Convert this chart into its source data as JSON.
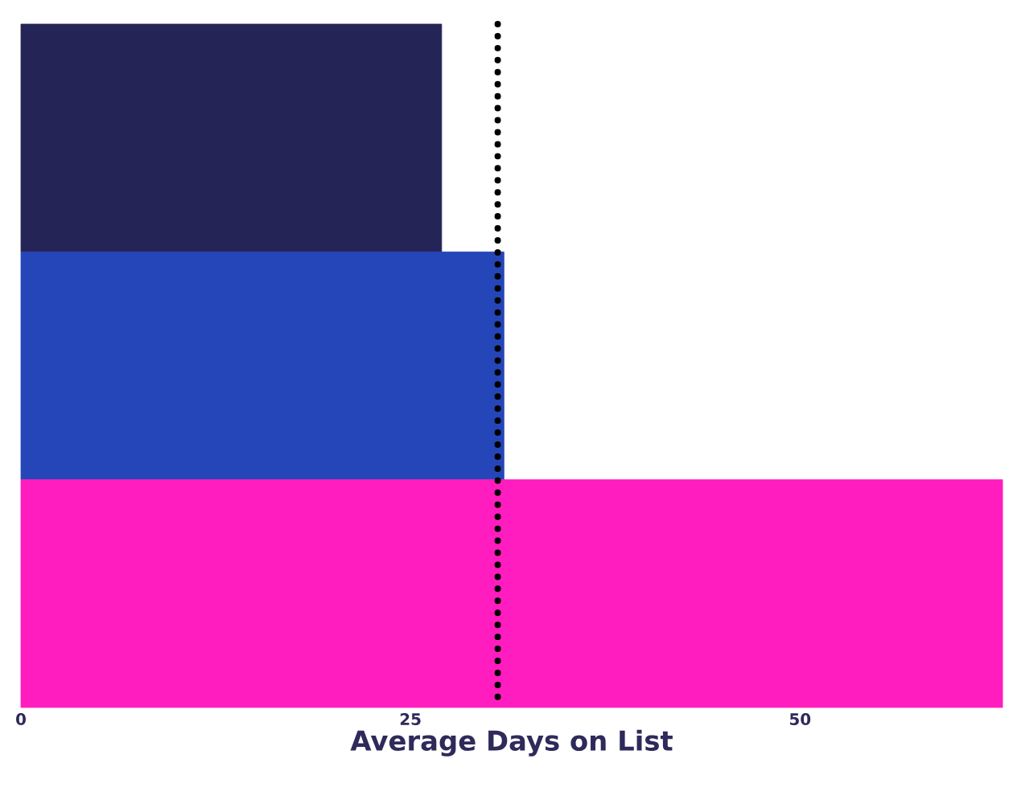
{
  "chart_data": {
    "type": "bar",
    "orientation": "horizontal",
    "xlabel": "Average Days on List",
    "categories": [
      null,
      null,
      null
    ],
    "values": [
      27,
      31,
      63
    ],
    "colors": [
      "#252456",
      "#2546b8",
      "#ff1dbf"
    ],
    "xlim": [
      0,
      63
    ],
    "xticks": [
      0,
      25,
      50
    ],
    "ref_lines": [
      {
        "axis": "x",
        "value": 30.6,
        "color": "#000000",
        "line_style": "dotted"
      }
    ]
  }
}
